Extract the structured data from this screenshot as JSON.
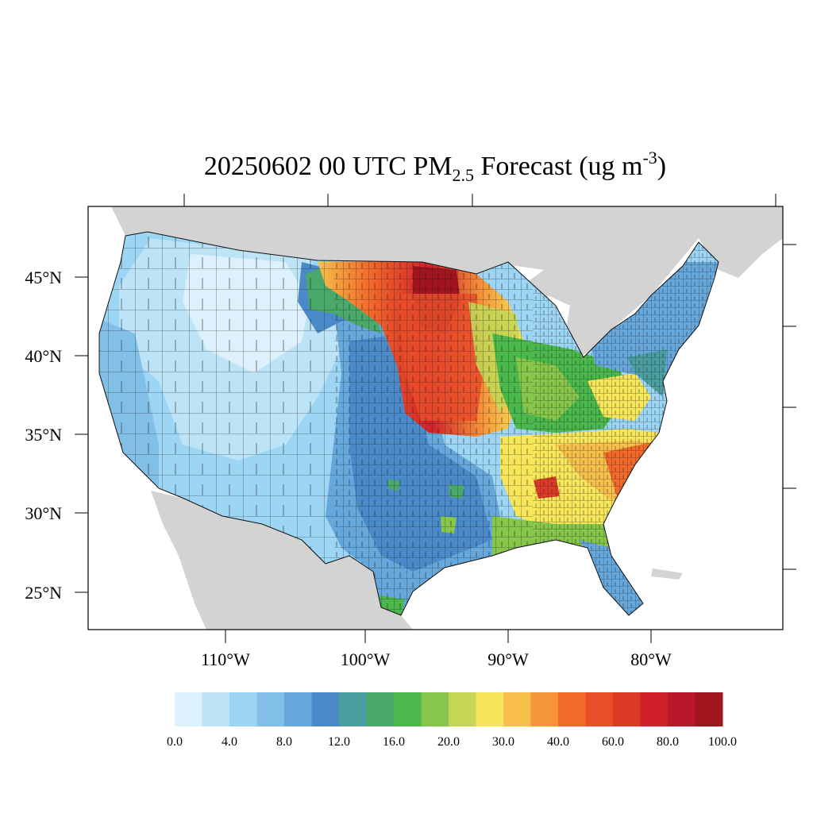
{
  "title": {
    "prefix": "20250602 00 UTC PM",
    "subscript": "2.5",
    "middle": " Forecast (ug m",
    "superscript": "-3",
    "suffix": ")"
  },
  "axes": {
    "lat_labels": [
      "45°N",
      "40°N",
      "35°N",
      "30°N",
      "25°N"
    ],
    "lon_labels": [
      "110°W",
      "100°W",
      "90°W",
      "80°W"
    ]
  },
  "colorbar": {
    "colors": [
      "#dcf1fb",
      "#bde3f7",
      "#9dd6f5",
      "#82bfe6",
      "#66a8dc",
      "#4a8ac8",
      "#4a9ea0",
      "#4aa86a",
      "#4ab84a",
      "#86c64a",
      "#c4d654",
      "#f7e55a",
      "#f6c04a",
      "#f6953a",
      "#f26a2a",
      "#e84e2a",
      "#dc3a26",
      "#d0202a",
      "#b8182a",
      "#a0141e"
    ],
    "labels": [
      "0.0",
      "4.0",
      "8.0",
      "12.0",
      "16.0",
      "20.0",
      "30.0",
      "40.0",
      "60.0",
      "80.0",
      "100.0"
    ]
  }
}
